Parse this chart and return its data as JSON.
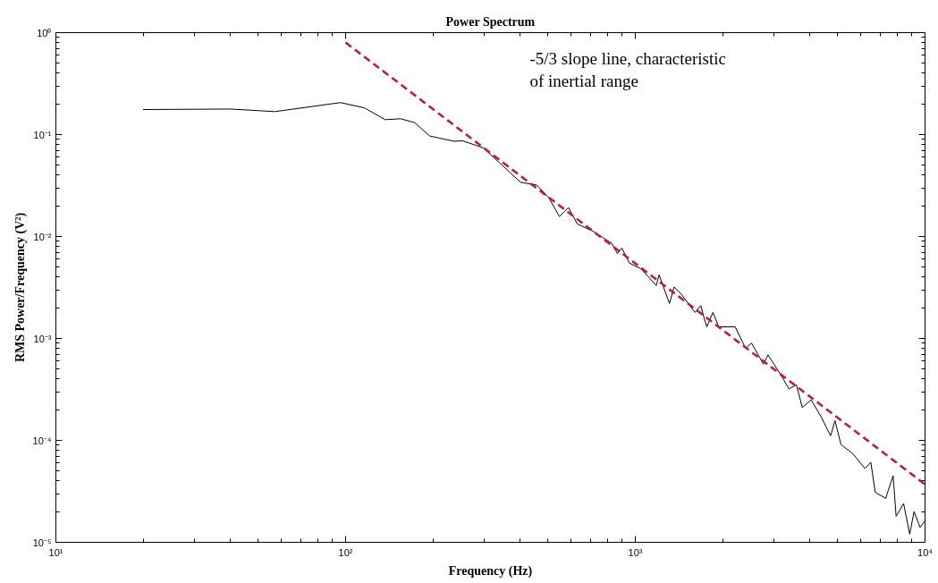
{
  "chart_data": {
    "type": "line",
    "title": "Power Spectrum",
    "xlabel": "Frequency (Hz)",
    "ylabel": "RMS Power/Frequency (V²)",
    "log": "xy",
    "grid": false,
    "xlim": [
      10,
      10000
    ],
    "ylim": [
      1e-05,
      1
    ],
    "xticks": [
      {
        "value": 10,
        "label": "10¹"
      },
      {
        "value": 100,
        "label": "10²"
      },
      {
        "value": 1000,
        "label": "10³"
      },
      {
        "value": 10000,
        "label": "10⁴"
      }
    ],
    "yticks": [
      {
        "value": 1e-05,
        "label": "10⁻⁵"
      },
      {
        "value": 0.0001,
        "label": "10⁻⁴"
      },
      {
        "value": 0.001,
        "label": "10⁻³"
      },
      {
        "value": 0.01,
        "label": "10⁻²"
      },
      {
        "value": 0.1,
        "label": "10⁻¹"
      },
      {
        "value": 1,
        "label": "10⁰"
      }
    ],
    "series": [
      {
        "color": "#000000",
        "line_style": "solid",
        "x": [
          20,
          40,
          57,
          96,
          116,
          137,
          155,
          173,
          195,
          236,
          253,
          299,
          402,
          457,
          503,
          547,
          588,
          630,
          717,
          828,
          867,
          899,
          953,
          1049,
          1181,
          1208,
          1312,
          1361,
          1444,
          1606,
          1683,
          1726,
          1766,
          1853,
          1942,
          2212,
          2402,
          2518,
          2768,
          2871,
          3194,
          3389,
          3597,
          3770,
          4045,
          4395,
          4721,
          4889,
          5128,
          5636,
          6200,
          6500,
          6730,
          7313,
          7762,
          7946,
          8436,
          8852,
          9166,
          9617,
          9950
        ],
        "values": [
          0.176,
          0.178,
          0.168,
          0.206,
          0.183,
          0.14,
          0.143,
          0.131,
          0.097,
          0.086,
          0.087,
          0.074,
          0.034,
          0.032,
          0.024,
          0.0157,
          0.0192,
          0.0133,
          0.0112,
          0.0086,
          0.0068,
          0.0077,
          0.0055,
          0.0048,
          0.0033,
          0.0042,
          0.0022,
          0.0032,
          0.0027,
          0.0018,
          0.0021,
          0.0016,
          0.0013,
          0.0018,
          0.0013,
          0.0013,
          0.0008,
          0.0009,
          0.00056,
          0.00069,
          0.00043,
          0.00032,
          0.00035,
          0.00021,
          0.00025,
          0.000167,
          0.000111,
          0.000156,
          9.1e-05,
          7.4e-05,
          5.3e-05,
          6.1e-05,
          3.1e-05,
          2.7e-05,
          4.5e-05,
          1.8e-05,
          2.4e-05,
          1.2e-05,
          2e-05,
          1.4e-05,
          1.6e-05
        ]
      },
      {
        "color": "#d0103a",
        "line_style": "dashed",
        "x": [
          100,
          10000
        ],
        "values": [
          0.8,
          3.7e-05
        ]
      }
    ],
    "annotations": [
      "-5/3 slope line, characteristic\nof inertial range"
    ]
  }
}
